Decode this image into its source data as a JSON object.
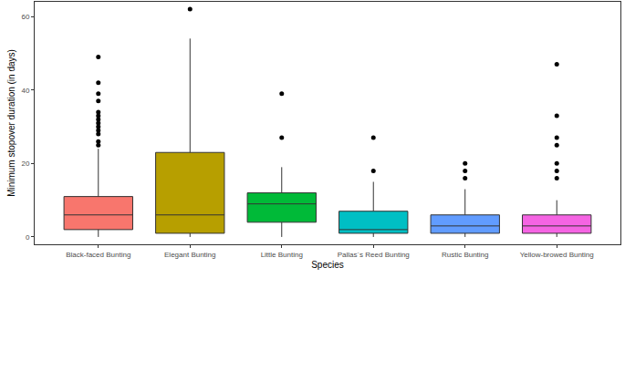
{
  "chart_data": {
    "type": "box",
    "x_label": "Species",
    "y_label": "Minimum stopover duration (in days)",
    "categories": [
      "Black-faced Bunting",
      "Elegant Bunting",
      "Little Bunting",
      "Pallas´s Reed Bunting",
      "Rustic Bunting",
      "Yellow-browed Bunting"
    ],
    "series": [
      {
        "name": "Black-faced Bunting",
        "color": "#F8766D",
        "lower_whisker": 0,
        "q1": 2,
        "median": 6,
        "q3": 11,
        "upper_whisker": 24,
        "outliers": [
          25,
          26,
          28,
          29,
          30,
          31,
          32,
          33,
          34,
          37,
          39,
          42,
          49
        ]
      },
      {
        "name": "Elegant Bunting",
        "color": "#B79F00",
        "lower_whisker": 0,
        "q1": 1,
        "median": 6,
        "q3": 23,
        "upper_whisker": 54,
        "outliers": [
          62
        ]
      },
      {
        "name": "Little Bunting",
        "color": "#00BA38",
        "lower_whisker": 0,
        "q1": 4,
        "median": 9,
        "q3": 12,
        "upper_whisker": 19,
        "outliers": [
          27,
          39
        ]
      },
      {
        "name": "Pallas´s Reed Bunting",
        "color": "#00BFC4",
        "lower_whisker": 0,
        "q1": 1,
        "median": 2,
        "q3": 7,
        "upper_whisker": 15,
        "outliers": [
          18,
          27
        ]
      },
      {
        "name": "Rustic Bunting",
        "color": "#619CFF",
        "lower_whisker": 0,
        "q1": 1,
        "median": 3,
        "q3": 6,
        "upper_whisker": 13,
        "outliers": [
          16,
          18,
          20
        ]
      },
      {
        "name": "Yellow-browed Bunting",
        "color": "#F564E3",
        "lower_whisker": 0,
        "q1": 1,
        "median": 3,
        "q3": 6,
        "upper_whisker": 10,
        "outliers": [
          16,
          18,
          20,
          25,
          27,
          33,
          47
        ]
      }
    ],
    "ylim": [
      -2,
      64
    ],
    "yticks": [
      0,
      20,
      40,
      60
    ],
    "grid": false
  }
}
